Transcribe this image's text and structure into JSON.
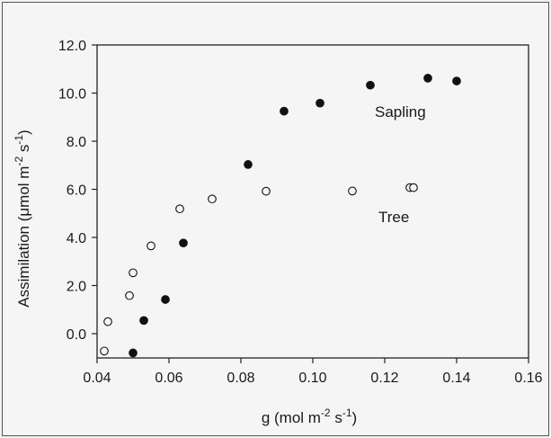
{
  "chart_data": {
    "type": "scatter",
    "xlabel": "g (mol m-2 s-1)",
    "ylabel": "Assimilation (μmol m-2 s-1)",
    "xlim": [
      0.04,
      0.16
    ],
    "ylim": [
      -0.8,
      12.0
    ],
    "x_ticks": [
      "0.04",
      "0.06",
      "0.08",
      "0.10",
      "0.12",
      "0.14",
      "0.16"
    ],
    "y_ticks": [
      "0.0",
      "2.0",
      "4.0",
      "6.0",
      "8.0",
      "10.0",
      "12.0"
    ],
    "grid": false,
    "series": [
      {
        "name": "Sapling",
        "marker": "filled-circle",
        "color": "#111111",
        "points": [
          [
            0.05,
            -0.8
          ],
          [
            0.053,
            0.55
          ],
          [
            0.059,
            1.42
          ],
          [
            0.064,
            3.77
          ],
          [
            0.082,
            7.03
          ],
          [
            0.092,
            9.25
          ],
          [
            0.102,
            9.58
          ],
          [
            0.116,
            10.33
          ],
          [
            0.132,
            10.62
          ],
          [
            0.14,
            10.5
          ]
        ]
      },
      {
        "name": "Tree",
        "marker": "open-circle",
        "color": "#111111",
        "points": [
          [
            0.042,
            -0.72
          ],
          [
            0.043,
            0.5
          ],
          [
            0.049,
            1.58
          ],
          [
            0.05,
            2.53
          ],
          [
            0.055,
            3.65
          ],
          [
            0.063,
            5.19
          ],
          [
            0.072,
            5.6
          ],
          [
            0.087,
            5.92
          ],
          [
            0.111,
            5.93
          ],
          [
            0.127,
            6.07
          ],
          [
            0.128,
            6.07
          ]
        ]
      }
    ]
  }
}
